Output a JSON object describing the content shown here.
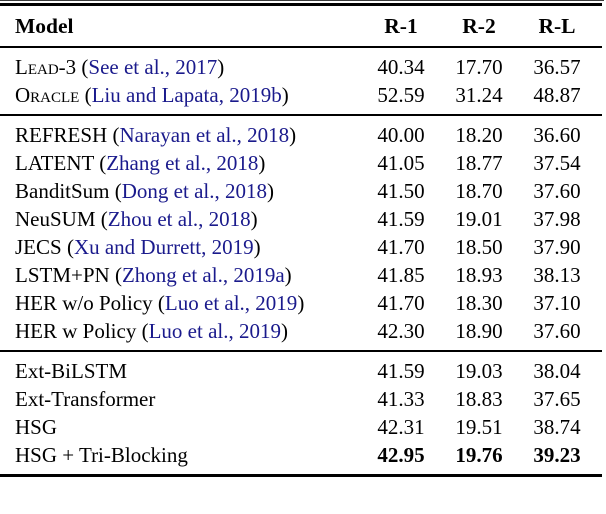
{
  "colors": {
    "citation_blue": "#1A1A8C",
    "text": "#000000",
    "rule": "#000000",
    "background": "#ffffff"
  },
  "table": {
    "columns": [
      "Model",
      "R-1",
      "R-2",
      "R-L"
    ],
    "sections": [
      [
        {
          "model": "Lead-3",
          "smallcaps": true,
          "citation": "See et al., 2017",
          "values": [
            "40.34",
            "17.70",
            "36.57"
          ],
          "bold": false
        },
        {
          "model": "Oracle",
          "smallcaps": true,
          "citation": "Liu and Lapata, 2019b",
          "values": [
            "52.59",
            "31.24",
            "48.87"
          ],
          "bold": false
        }
      ],
      [
        {
          "model": "REFRESH",
          "smallcaps": false,
          "citation": "Narayan et al., 2018",
          "values": [
            "40.00",
            "18.20",
            "36.60"
          ],
          "bold": false
        },
        {
          "model": "LATENT",
          "smallcaps": false,
          "citation": "Zhang et al., 2018",
          "values": [
            "41.05",
            "18.77",
            "37.54"
          ],
          "bold": false
        },
        {
          "model": "BanditSum",
          "smallcaps": false,
          "citation": "Dong et al., 2018",
          "values": [
            "41.50",
            "18.70",
            "37.60"
          ],
          "bold": false
        },
        {
          "model": "NeuSUM",
          "smallcaps": false,
          "citation": "Zhou et al., 2018",
          "values": [
            "41.59",
            "19.01",
            "37.98"
          ],
          "bold": false
        },
        {
          "model": "JECS",
          "smallcaps": false,
          "citation": "Xu and Durrett, 2019",
          "values": [
            "41.70",
            "18.50",
            "37.90"
          ],
          "bold": false
        },
        {
          "model": "LSTM+PN",
          "smallcaps": false,
          "citation": "Zhong et al., 2019a",
          "values": [
            "41.85",
            "18.93",
            "38.13"
          ],
          "bold": false
        },
        {
          "model": "HER w/o Policy",
          "smallcaps": false,
          "citation": "Luo et al., 2019",
          "values": [
            "41.70",
            "18.30",
            "37.10"
          ],
          "bold": false
        },
        {
          "model": "HER w Policy",
          "smallcaps": false,
          "citation": "Luo et al., 2019",
          "values": [
            "42.30",
            "18.90",
            "37.60"
          ],
          "bold": false
        }
      ],
      [
        {
          "model": "Ext-BiLSTM",
          "smallcaps": false,
          "citation": null,
          "values": [
            "41.59",
            "19.03",
            "38.04"
          ],
          "bold": false
        },
        {
          "model": "Ext-Transformer",
          "smallcaps": false,
          "citation": null,
          "values": [
            "41.33",
            "18.83",
            "37.65"
          ],
          "bold": false
        },
        {
          "model": "HSG",
          "smallcaps": false,
          "citation": null,
          "values": [
            "42.31",
            "19.51",
            "38.74"
          ],
          "bold": false
        },
        {
          "model": "HSG + Tri-Blocking",
          "smallcaps": false,
          "citation": null,
          "values": [
            "42.95",
            "19.76",
            "39.23"
          ],
          "bold": true
        }
      ]
    ]
  }
}
